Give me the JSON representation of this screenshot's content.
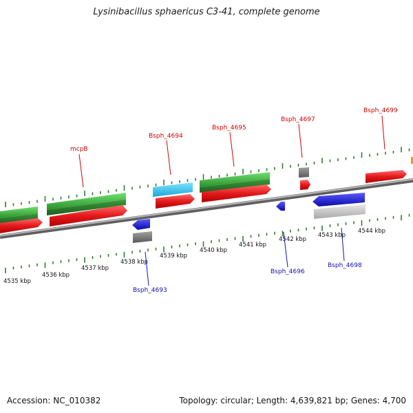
{
  "title": "Lysinibacillus sphaericus C3-41, complete genome",
  "footer": {
    "accession": "Accession: NC_010382",
    "topology": "Topology: circular; Length: 4,639,821 bp; Genes: 4,700"
  },
  "colors": {
    "forward_gene": "#e31a1c",
    "reverse_gene": "#1414d8",
    "cds_green": "#2eaa2e",
    "cyan_feature": "#22c0ee",
    "gray_feature": "#707070",
    "light_gray_feature": "#c0c0c0",
    "backbone": "#8a8a8a",
    "ticks": "#2f7a2f",
    "upper_label": "#cc0000",
    "lower_label": "#1010aa"
  },
  "kbp_labels": [
    "4535 kbp",
    "4536 kbp",
    "4537 kbp",
    "4538 kbp",
    "4539 kbp",
    "4540 kbp",
    "4541 kbp",
    "4542 kbp",
    "4543 kbp",
    "4544 kbp"
  ],
  "upper_labels": [
    "mcpB",
    "Bsph_4694",
    "Bsph_4695",
    "Bsph_4697",
    "Bsph_4699"
  ],
  "lower_labels": [
    "Bsph_4693",
    "Bsph_4696",
    "Bsph_4698"
  ]
}
